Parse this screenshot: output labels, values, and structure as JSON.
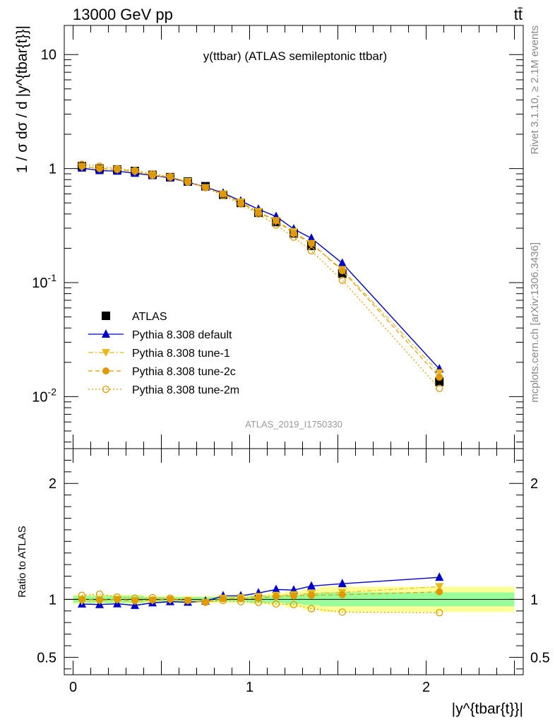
{
  "header": {
    "left_text": "13000 GeV pp",
    "right_text": "tt̄",
    "side_text_top": "Rivet 3.1.10, ≥ 2.1M events",
    "side_text_bottom": "mcplots.cern.ch [arXiv:1306.3436]"
  },
  "chart_data": [
    {
      "type": "line",
      "panel": "main",
      "title": "y(ttbar) (ATLAS semileptonic ttbar)",
      "watermark": "ATLAS_2019_I1750330",
      "ylabel": "1 / σ dσ / d |y^{tbar{t}}|",
      "yscale": "log",
      "ylim": [
        0.0035,
        18
      ],
      "xlim": [
        -0.05,
        2.55
      ],
      "y_tick_labels": [
        "10^{-2}",
        "10^{-1}",
        "1",
        "10"
      ],
      "legend_position": "bottom-left",
      "x": [
        0.05,
        0.15,
        0.25,
        0.35,
        0.45,
        0.55,
        0.65,
        0.75,
        0.85,
        0.95,
        1.05,
        1.15,
        1.25,
        1.35,
        1.525,
        2.075
      ],
      "series": [
        {
          "name": "ATLAS",
          "color": "#000000",
          "marker": "square",
          "values": [
            1.05,
            1.0,
            0.98,
            0.95,
            0.88,
            0.84,
            0.77,
            0.7,
            0.59,
            0.5,
            0.41,
            0.34,
            0.27,
            0.21,
            0.12,
            0.0135
          ]
        },
        {
          "name": "Pythia 8.308 default",
          "color": "#0000cc",
          "marker": "triangle-up",
          "line": "solid",
          "values": [
            1.01,
            0.96,
            0.95,
            0.91,
            0.87,
            0.83,
            0.76,
            0.69,
            0.61,
            0.52,
            0.44,
            0.38,
            0.295,
            0.245,
            0.148,
            0.0175
          ]
        },
        {
          "name": "Pythia 8.308 tune-1",
          "color": "#e8b820",
          "marker": "triangle-down",
          "line": "dashdot",
          "values": [
            1.03,
            1.0,
            0.98,
            0.94,
            0.88,
            0.84,
            0.77,
            0.68,
            0.6,
            0.51,
            0.42,
            0.35,
            0.28,
            0.22,
            0.13,
            0.0162
          ]
        },
        {
          "name": "Pythia 8.308 tune-2c",
          "color": "#e09a00",
          "marker": "circle",
          "line": "dashed",
          "values": [
            1.05,
            1.0,
            0.98,
            0.95,
            0.87,
            0.84,
            0.76,
            0.68,
            0.6,
            0.5,
            0.41,
            0.35,
            0.27,
            0.22,
            0.127,
            0.0148
          ]
        },
        {
          "name": "Pythia 8.308 tune-2m",
          "color": "#e09a00",
          "marker": "circle-open",
          "line": "dotted",
          "values": [
            1.09,
            1.05,
            1.0,
            0.96,
            0.9,
            0.85,
            0.76,
            0.68,
            0.58,
            0.49,
            0.4,
            0.32,
            0.25,
            0.19,
            0.105,
            0.0118
          ]
        }
      ]
    },
    {
      "type": "line",
      "panel": "ratio",
      "ylabel": "Ratio to ATLAS",
      "xlabel": "|y^{tbar{t}}|",
      "ylim": [
        0.35,
        2.3
      ],
      "xlim": [
        -0.05,
        2.55
      ],
      "y_tick_labels": [
        "0.5",
        "1",
        "2"
      ],
      "x_tick_labels": [
        "0",
        "1",
        "2"
      ],
      "x_edges": [
        0.0,
        0.1,
        0.2,
        0.3,
        0.4,
        0.5,
        0.6,
        0.7,
        0.8,
        0.9,
        1.0,
        1.1,
        1.2,
        1.3,
        1.4,
        1.65,
        2.5
      ],
      "band_green_halfwidth": [
        0.03,
        0.03,
        0.03,
        0.03,
        0.02,
        0.02,
        0.02,
        0.02,
        0.02,
        0.02,
        0.03,
        0.03,
        0.04,
        0.05,
        0.06,
        0.06
      ],
      "band_yellow_halfwidth": [
        0.04,
        0.04,
        0.04,
        0.04,
        0.03,
        0.03,
        0.03,
        0.03,
        0.03,
        0.03,
        0.04,
        0.05,
        0.07,
        0.09,
        0.11,
        0.11
      ],
      "x": [
        0.05,
        0.15,
        0.25,
        0.35,
        0.45,
        0.55,
        0.65,
        0.75,
        0.85,
        0.95,
        1.05,
        1.15,
        1.25,
        1.35,
        1.525,
        2.075
      ],
      "series": [
        {
          "name": "Pythia 8.308 default",
          "color": "#0000cc",
          "marker": "triangle-up",
          "line": "solid",
          "values": [
            0.96,
            0.955,
            0.962,
            0.948,
            0.97,
            0.98,
            0.975,
            0.985,
            1.03,
            1.03,
            1.055,
            1.085,
            1.08,
            1.115,
            1.135,
            1.19
          ]
        },
        {
          "name": "Pythia 8.308 tune-1",
          "color": "#e8b820",
          "marker": "triangle-down",
          "line": "dashdot",
          "values": [
            0.985,
            0.99,
            0.995,
            0.985,
            0.99,
            0.995,
            0.99,
            0.975,
            1.01,
            1.015,
            1.025,
            1.035,
            1.04,
            1.05,
            1.06,
            1.11
          ]
        },
        {
          "name": "Pythia 8.308 tune-2c",
          "color": "#e09a00",
          "marker": "circle",
          "line": "dashed",
          "values": [
            1.0,
            0.995,
            1.0,
            0.99,
            0.995,
            1.0,
            0.99,
            0.975,
            1.005,
            1.005,
            1.01,
            1.025,
            1.03,
            1.035,
            1.04,
            1.065
          ]
        },
        {
          "name": "Pythia 8.308 tune-2m",
          "color": "#e09a00",
          "marker": "circle-open",
          "line": "dotted",
          "values": [
            1.035,
            1.045,
            1.02,
            1.01,
            1.015,
            1.01,
            0.99,
            0.975,
            0.99,
            0.98,
            0.975,
            0.96,
            0.955,
            0.92,
            0.89,
            0.885
          ]
        }
      ]
    }
  ]
}
